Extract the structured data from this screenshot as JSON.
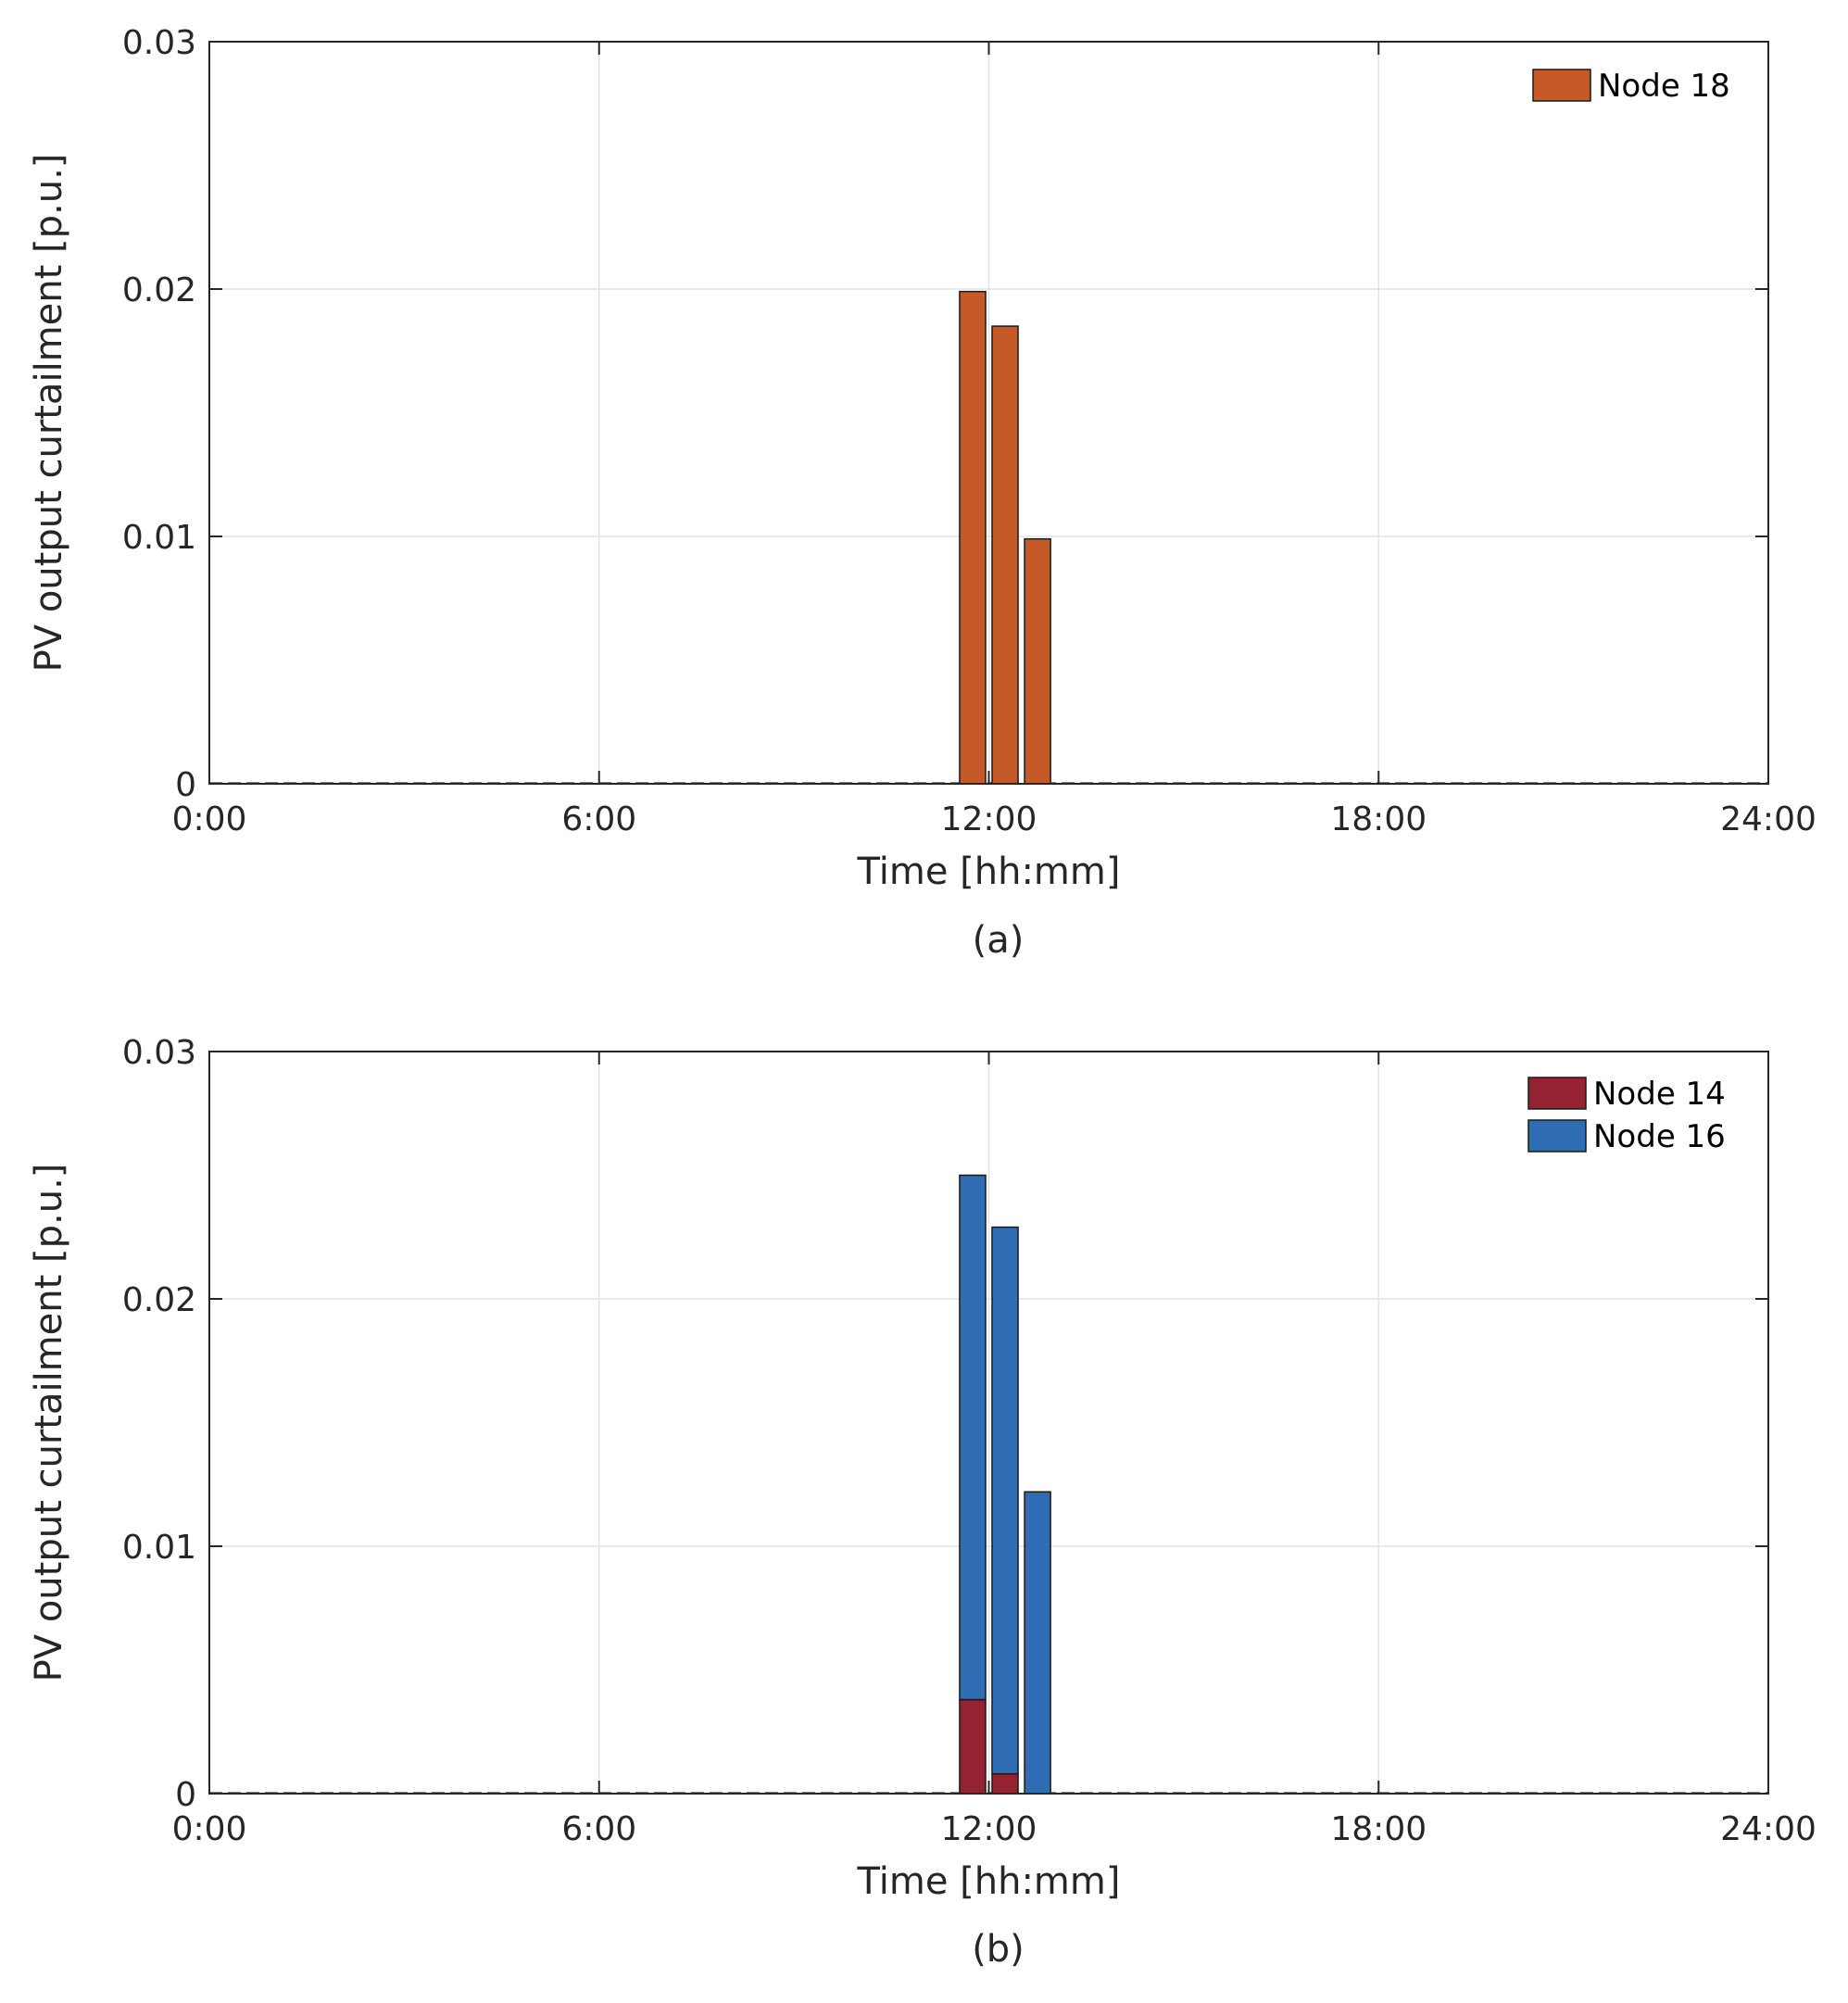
{
  "chart_data": [
    {
      "id": "a",
      "type": "bar",
      "stacked": false,
      "caption": "(a)",
      "xlabel": "Time [hh:mm]",
      "ylabel": "PV output curtailment [p.u.]",
      "xlim": [
        0,
        24
      ],
      "ylim": [
        0,
        0.03
      ],
      "xticks": [
        0,
        6,
        12,
        18,
        24
      ],
      "xtick_labels": [
        "0:00",
        "6:00",
        "12:00",
        "18:00",
        "24:00"
      ],
      "yticks": [
        0,
        0.01,
        0.02,
        0.03
      ],
      "ytick_labels": [
        "0",
        "0.01",
        "0.02",
        "0.03"
      ],
      "grid": true,
      "legend_position": "top-right",
      "x": [
        11.75,
        12.25,
        12.75
      ],
      "bar_width_hours": 0.4,
      "series": [
        {
          "name": "Node 18",
          "color": "#c55a28",
          "values": [
            0.0199,
            0.0185,
            0.0099
          ]
        }
      ]
    },
    {
      "id": "b",
      "type": "bar",
      "stacked": true,
      "caption": "(b)",
      "xlabel": "Time [hh:mm]",
      "ylabel": "PV output curtailment [p.u.]",
      "xlim": [
        0,
        24
      ],
      "ylim": [
        0,
        0.03
      ],
      "xticks": [
        0,
        6,
        12,
        18,
        24
      ],
      "xtick_labels": [
        "0:00",
        "6:00",
        "12:00",
        "18:00",
        "24:00"
      ],
      "yticks": [
        0,
        0.01,
        0.02,
        0.03
      ],
      "ytick_labels": [
        "0",
        "0.01",
        "0.02",
        "0.03"
      ],
      "grid": true,
      "legend_position": "top-right",
      "x": [
        11.75,
        12.25,
        12.75
      ],
      "bar_width_hours": 0.4,
      "series": [
        {
          "name": "Node 14",
          "color": "#952131",
          "values": [
            0.0038,
            0.0008,
            0.0
          ]
        },
        {
          "name": "Node 16",
          "color": "#2e6db4",
          "values": [
            0.0212,
            0.0221,
            0.0122
          ]
        }
      ]
    }
  ]
}
